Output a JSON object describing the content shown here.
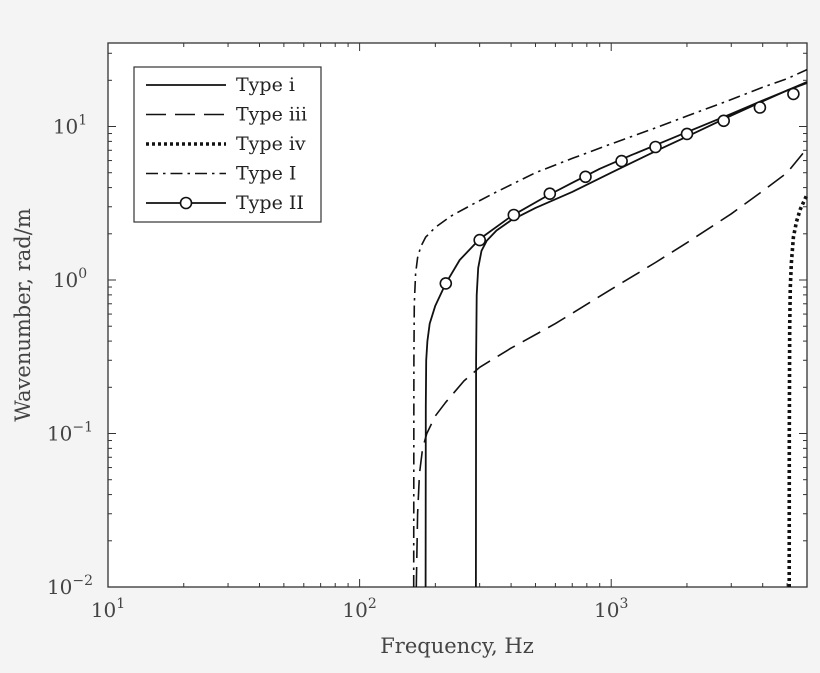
{
  "chart_data": {
    "type": "line",
    "xlabel": "Frequency, Hz",
    "ylabel": "Wavenumber, rad/m",
    "xscale": "log",
    "yscale": "log",
    "xlim": [
      10,
      6000
    ],
    "ylim": [
      0.01,
      35
    ],
    "x_ticks": [
      10,
      100,
      1000
    ],
    "y_ticks": [
      0.01,
      0.1,
      1,
      10
    ],
    "grid": false,
    "legend_position": "top-left",
    "series": [
      {
        "name": "Type i",
        "style": "solid",
        "x": [
          290,
          290.5,
          292,
          296,
          305,
          320,
          350,
          400,
          500,
          700,
          1000,
          1500,
          2000,
          3000,
          4000,
          5000,
          6000
        ],
        "y": [
          0.01,
          0.3,
          0.8,
          1.2,
          1.55,
          1.8,
          2.1,
          2.45,
          2.95,
          3.75,
          5.0,
          6.9,
          8.6,
          11.8,
          14.6,
          17.2,
          19.5
        ]
      },
      {
        "name": "Type iii",
        "style": "dashed",
        "x": [
          168,
          170,
          173,
          178,
          185,
          200,
          220,
          260,
          300,
          400,
          600,
          1000,
          1500,
          2000,
          3000,
          4000,
          5000,
          6000
        ],
        "y": [
          0.01,
          0.03,
          0.055,
          0.08,
          0.1,
          0.13,
          0.16,
          0.22,
          0.27,
          0.36,
          0.52,
          0.87,
          1.3,
          1.75,
          2.7,
          3.8,
          5.0,
          7.2
        ]
      },
      {
        "name": "Type iv",
        "style": "dotted",
        "x": [
          5100,
          5105,
          5120,
          5150,
          5200,
          5300,
          5450,
          5650,
          6000
        ],
        "y": [
          0.01,
          0.1,
          0.5,
          0.9,
          1.3,
          1.9,
          2.4,
          2.9,
          3.6
        ]
      },
      {
        "name": "Type I",
        "style": "dashdot",
        "x": [
          164,
          164.3,
          165,
          167,
          170,
          175,
          183,
          200,
          230,
          280,
          350,
          500,
          700,
          1000,
          1500,
          2000,
          3000,
          4000,
          5000,
          6000
        ],
        "y": [
          0.01,
          0.3,
          0.7,
          1.1,
          1.4,
          1.65,
          1.9,
          2.2,
          2.6,
          3.1,
          3.75,
          5.0,
          6.2,
          7.7,
          9.8,
          11.7,
          15.0,
          18.0,
          20.5,
          23.5
        ]
      },
      {
        "name": "Type II",
        "style": "solid-marker",
        "x": [
          183,
          183.3,
          184,
          186,
          190,
          200,
          220,
          250,
          300,
          400,
          550,
          700,
          900,
          1200,
          1600,
          2000,
          3000,
          4000,
          5000,
          6000
        ],
        "y": [
          0.01,
          0.15,
          0.3,
          0.4,
          0.52,
          0.68,
          0.95,
          1.35,
          1.85,
          2.6,
          3.5,
          4.3,
          5.3,
          6.5,
          7.9,
          9.2,
          12.1,
          14.8,
          17.2,
          19.2
        ]
      }
    ],
    "markers": {
      "series": "Type II",
      "x": [
        220,
        300,
        410,
        570,
        790,
        1100,
        1500,
        2000,
        2800,
        3900,
        5300
      ],
      "y": [
        0.95,
        1.82,
        2.65,
        3.65,
        4.7,
        5.95,
        7.35,
        8.95,
        10.9,
        13.3,
        16.3
      ]
    }
  }
}
